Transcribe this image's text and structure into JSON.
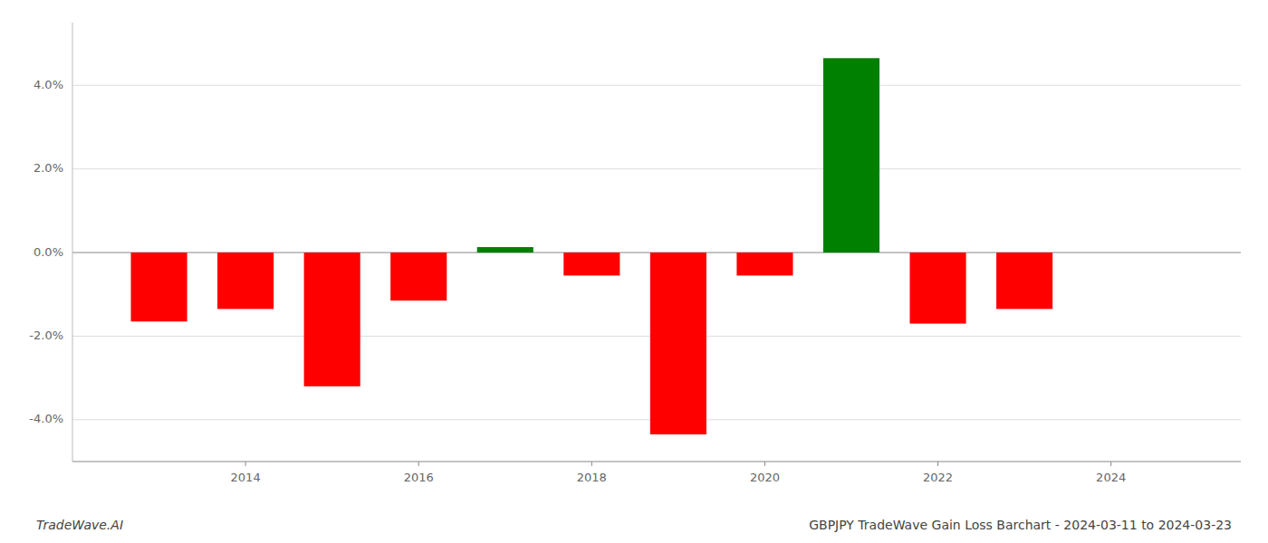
{
  "chart_data": {
    "type": "bar",
    "title": "GBPJPY TradeWave Gain Loss Barchart - 2024-03-11 to 2024-03-23",
    "annotations": [
      "TradeWave.AI"
    ],
    "x": [
      2013,
      2014,
      2015,
      2016,
      2017,
      2018,
      2019,
      2020,
      2021,
      2022,
      2023,
      2024
    ],
    "values": [
      -1.65,
      -1.35,
      -3.2,
      -1.15,
      0.13,
      -0.55,
      -4.35,
      -0.55,
      4.65,
      -1.7,
      -1.35,
      0.0
    ],
    "colors": [
      "red",
      "red",
      "red",
      "red",
      "green",
      "red",
      "red",
      "red",
      "green",
      "red",
      "red",
      "red"
    ],
    "xlim": [
      2012.0,
      2025.5
    ],
    "xticks": [
      2014,
      2016,
      2018,
      2020,
      2022,
      2024
    ],
    "ylim": [
      -5.0,
      5.5
    ],
    "yticks": [
      {
        "value": -4.0,
        "label": "-4.0%"
      },
      {
        "value": -2.0,
        "label": "-2.0%"
      },
      {
        "value": 0.0,
        "label": "0.0%"
      },
      {
        "value": 2.0,
        "label": "2.0%"
      },
      {
        "value": 4.0,
        "label": "4.0%"
      }
    ],
    "grid": true
  }
}
